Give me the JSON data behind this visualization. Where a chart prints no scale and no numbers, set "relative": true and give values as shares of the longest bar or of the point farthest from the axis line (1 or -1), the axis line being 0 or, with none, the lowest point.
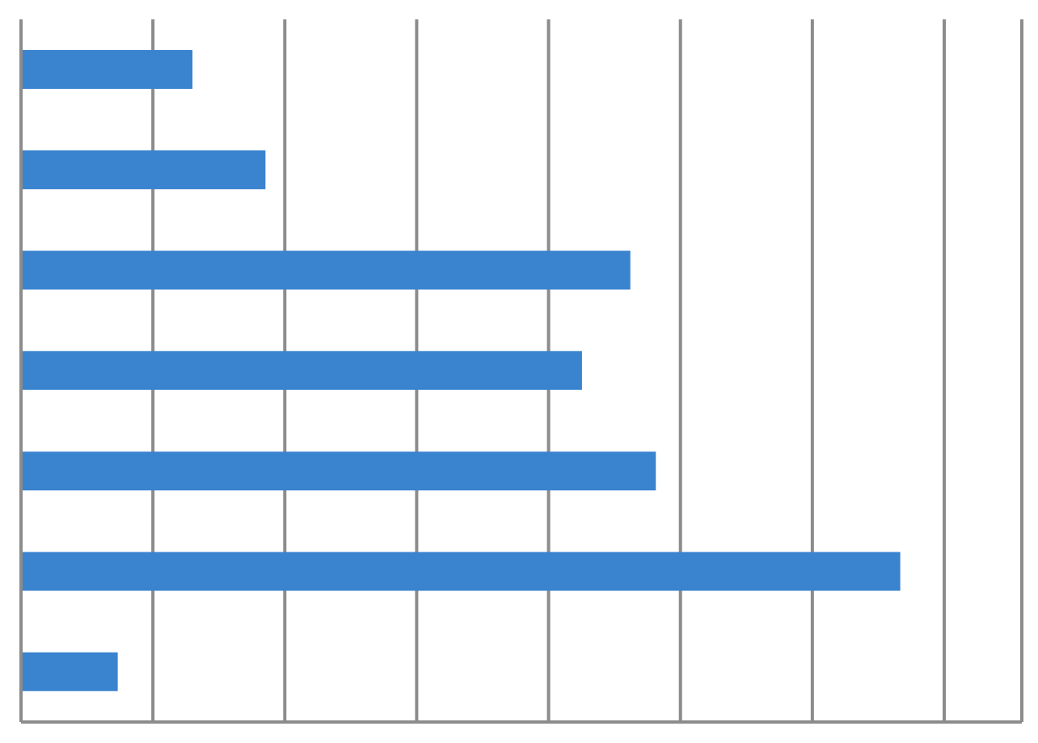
{
  "chart_data": {
    "type": "bar",
    "orientation": "horizontal",
    "relative": true,
    "categories": [
      null,
      null,
      null,
      null,
      null,
      null,
      null
    ],
    "values": [
      0.195,
      0.278,
      0.693,
      0.638,
      0.722,
      1,
      0.11
    ],
    "color": "#3983cf",
    "grid": "x"
  }
}
